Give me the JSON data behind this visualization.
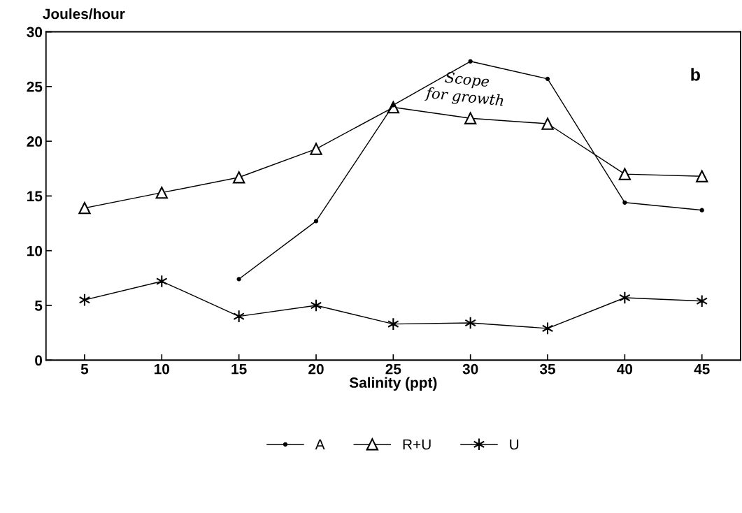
{
  "chart_data": {
    "type": "line",
    "ylabel": "Joules/hour",
    "xlabel": "Salinity (ppt)",
    "x": [
      5,
      10,
      15,
      20,
      25,
      30,
      35,
      40,
      45
    ],
    "series": [
      {
        "name": "A",
        "color": "#000000",
        "marker": "circle",
        "values": [
          null,
          null,
          7.4,
          12.7,
          23.3,
          27.3,
          25.7,
          14.4,
          13.7
        ]
      },
      {
        "name": "R+U",
        "color": "#000000",
        "marker": "triangle",
        "values": [
          13.9,
          15.3,
          16.7,
          19.3,
          23.1,
          22.1,
          21.6,
          17.0,
          16.8
        ]
      },
      {
        "name": "U",
        "color": "#000000",
        "marker": "cross",
        "values": [
          5.5,
          7.2,
          4.0,
          5.0,
          3.3,
          3.4,
          2.9,
          5.7,
          5.4
        ]
      }
    ],
    "xlim": [
      2.5,
      47.5
    ],
    "xticks": [
      5,
      10,
      15,
      20,
      25,
      30,
      35,
      40,
      45
    ],
    "ylim": [
      0,
      30
    ],
    "yticks": [
      0,
      5,
      10,
      15,
      20,
      25,
      30
    ],
    "annotations": [
      "Scope for growth",
      "b"
    ],
    "grid": false,
    "legend": "bottom",
    "line_style": "solid"
  }
}
